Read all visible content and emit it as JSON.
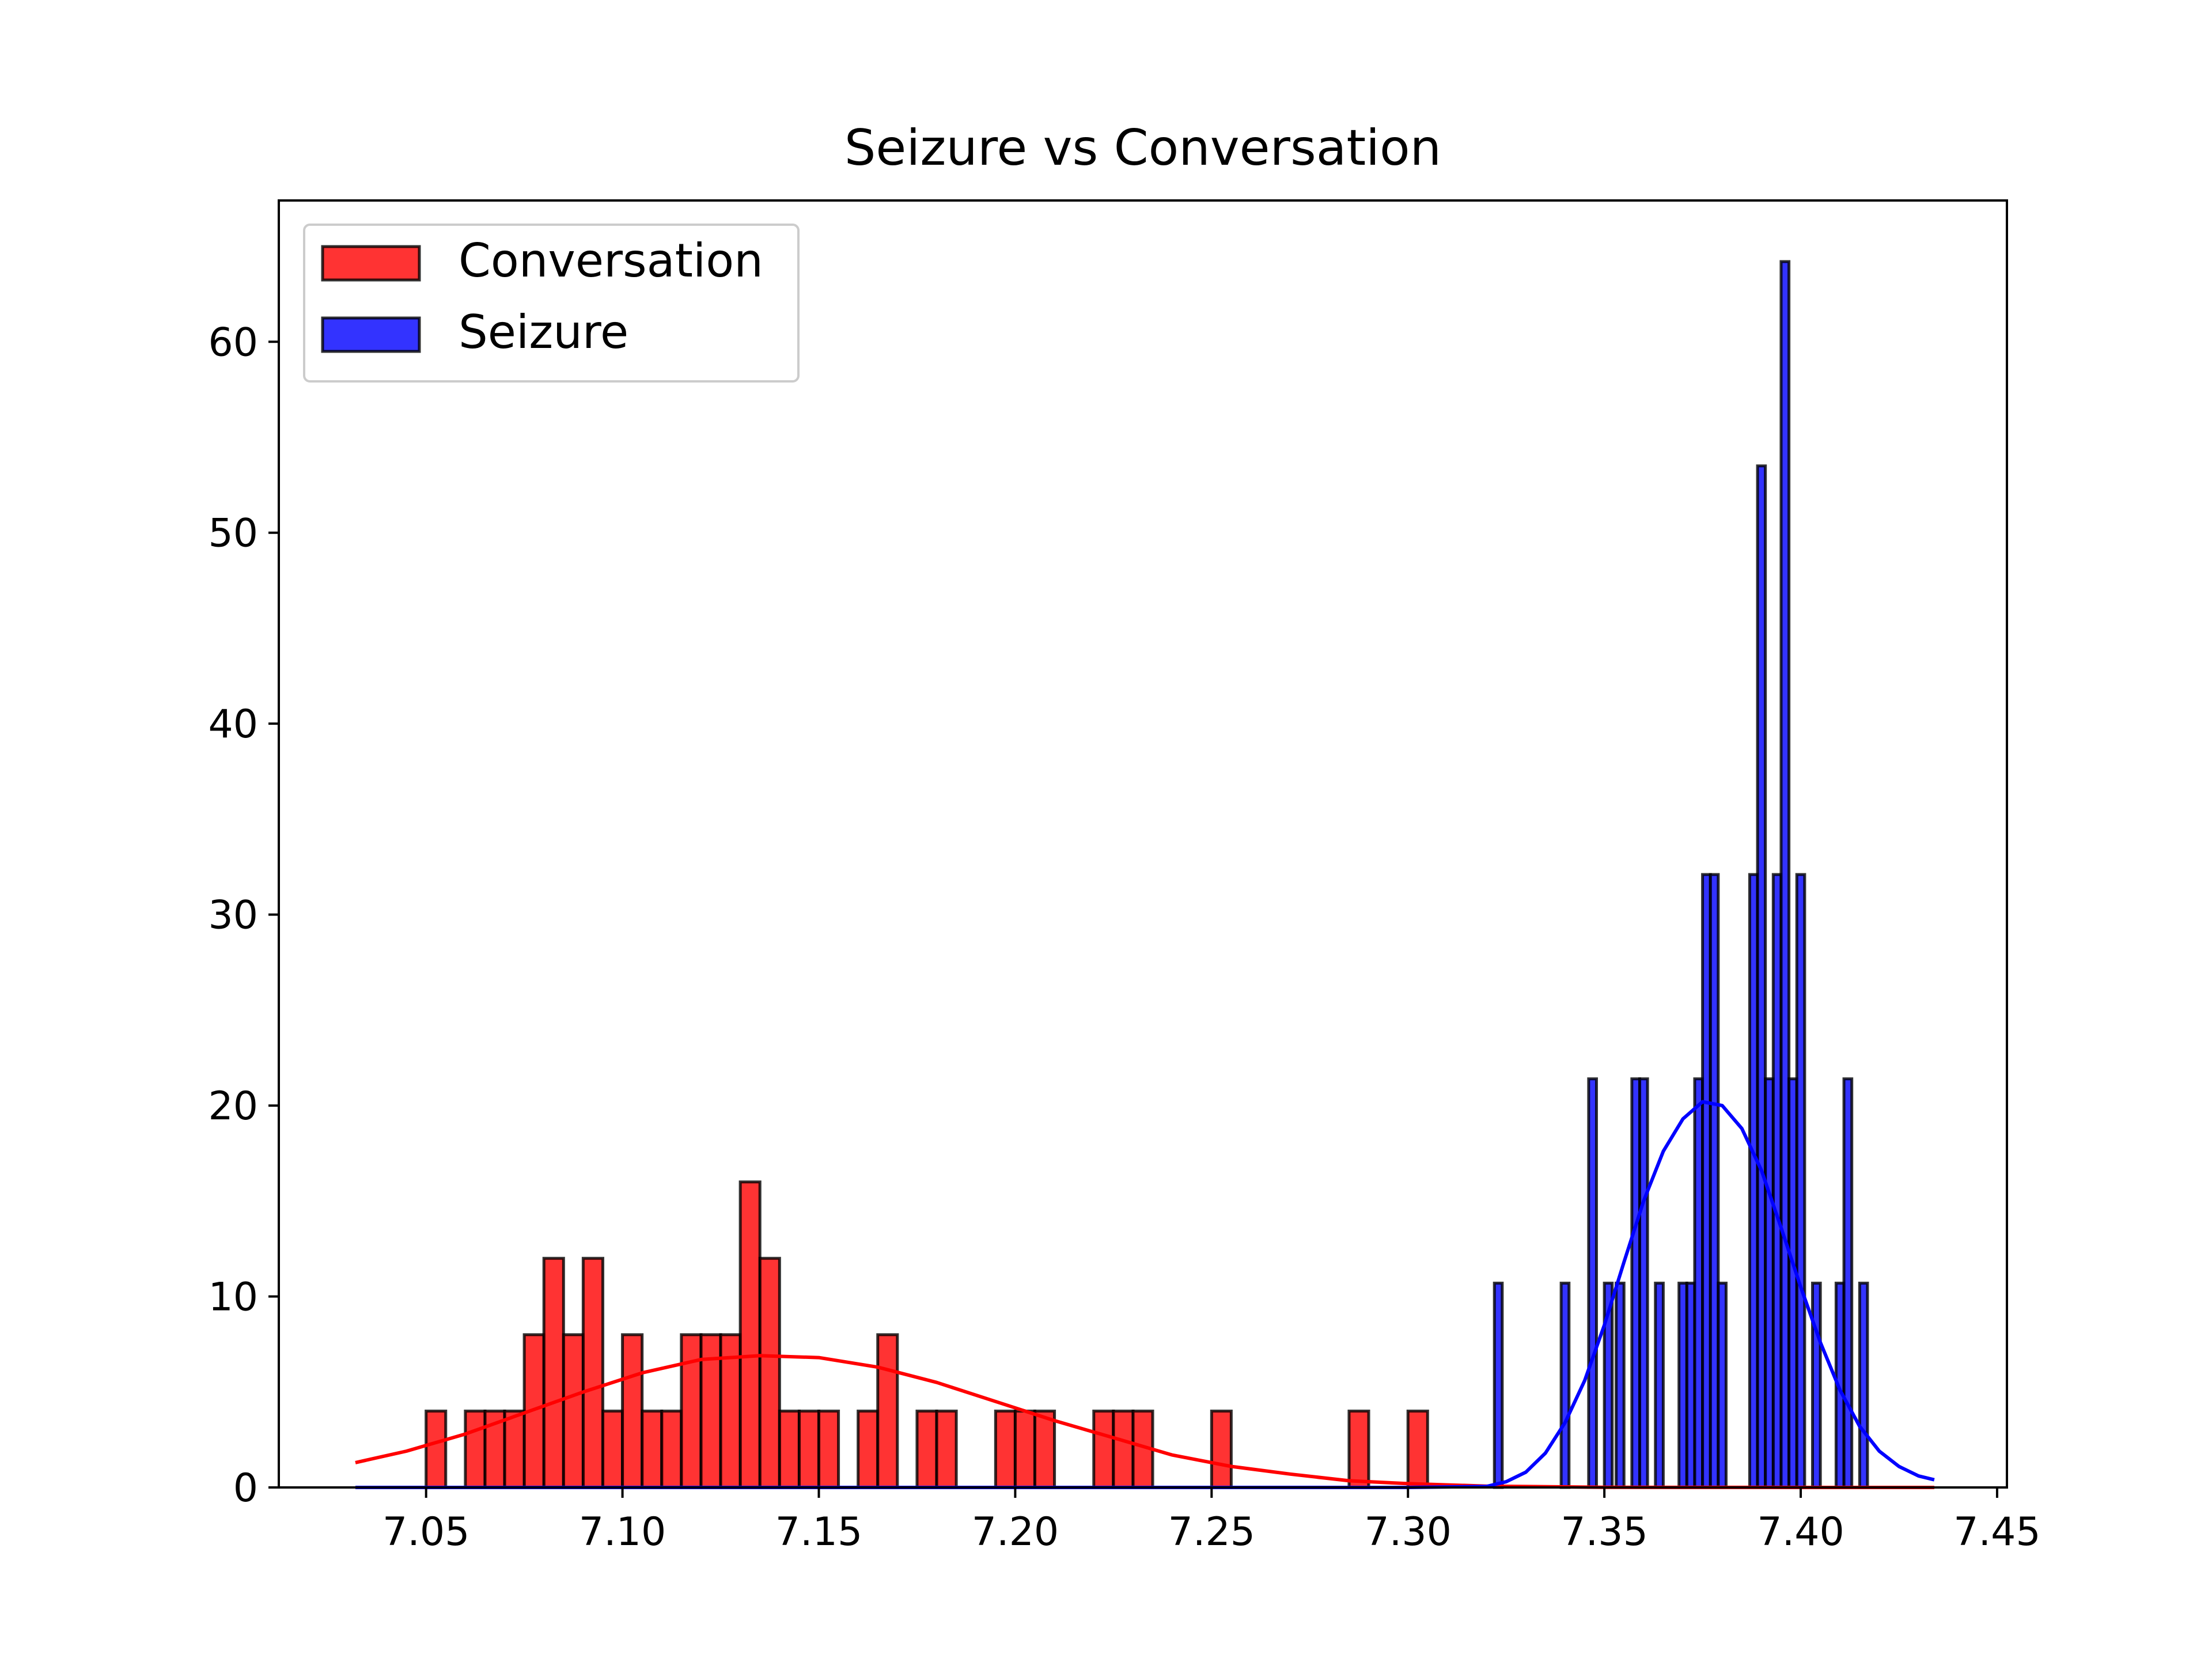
{
  "chart_data": {
    "type": "bar",
    "title": "Seizure vs Conversation",
    "xlabel": "",
    "ylabel": "",
    "xlim": [
      7.0125,
      7.4525
    ],
    "ylim": [
      0,
      67.4
    ],
    "xticks": [
      7.05,
      7.1,
      7.15,
      7.2,
      7.25,
      7.3,
      7.35,
      7.4,
      7.45
    ],
    "xtick_labels": [
      "7.05",
      "7.10",
      "7.15",
      "7.20",
      "7.25",
      "7.30",
      "7.35",
      "7.40",
      "7.45"
    ],
    "yticks": [
      0,
      10,
      20,
      30,
      40,
      50,
      60
    ],
    "ytick_labels": [
      "0",
      "10",
      "20",
      "30",
      "40",
      "50",
      "60"
    ],
    "grid": false,
    "legend_position": "upper-left",
    "series": [
      {
        "name": "Conversation",
        "color": "#ff0000",
        "bar_width": 0.005,
        "bins": [
          {
            "x": 7.0525,
            "value": 4
          },
          {
            "x": 7.0625,
            "value": 4
          },
          {
            "x": 7.0675,
            "value": 4
          },
          {
            "x": 7.0725,
            "value": 4
          },
          {
            "x": 7.0775,
            "value": 8
          },
          {
            "x": 7.0825,
            "value": 12
          },
          {
            "x": 7.0875,
            "value": 8
          },
          {
            "x": 7.0925,
            "value": 12
          },
          {
            "x": 7.0975,
            "value": 4
          },
          {
            "x": 7.1025,
            "value": 8
          },
          {
            "x": 7.1075,
            "value": 4
          },
          {
            "x": 7.1125,
            "value": 4
          },
          {
            "x": 7.1175,
            "value": 8
          },
          {
            "x": 7.1225,
            "value": 8
          },
          {
            "x": 7.1275,
            "value": 8
          },
          {
            "x": 7.1325,
            "value": 16
          },
          {
            "x": 7.1375,
            "value": 12
          },
          {
            "x": 7.1425,
            "value": 4
          },
          {
            "x": 7.1475,
            "value": 4
          },
          {
            "x": 7.1525,
            "value": 4
          },
          {
            "x": 7.1625,
            "value": 4
          },
          {
            "x": 7.1675,
            "value": 8
          },
          {
            "x": 7.1775,
            "value": 4
          },
          {
            "x": 7.1825,
            "value": 4
          },
          {
            "x": 7.1975,
            "value": 4
          },
          {
            "x": 7.2025,
            "value": 4
          },
          {
            "x": 7.2075,
            "value": 4
          },
          {
            "x": 7.2225,
            "value": 4
          },
          {
            "x": 7.2275,
            "value": 4
          },
          {
            "x": 7.2325,
            "value": 4
          },
          {
            "x": 7.2525,
            "value": 4
          },
          {
            "x": 7.2875,
            "value": 4
          },
          {
            "x": 7.3025,
            "value": 4
          }
        ],
        "fit_curve": {
          "x": [
            7.032,
            7.045,
            7.06,
            7.075,
            7.09,
            7.105,
            7.12,
            7.135,
            7.15,
            7.165,
            7.18,
            7.195,
            7.21,
            7.225,
            7.24,
            7.255,
            7.27,
            7.285,
            7.3,
            7.32,
            7.35,
            7.4,
            7.434
          ],
          "y": [
            1.3,
            1.9,
            2.8,
            3.9,
            5.0,
            6.0,
            6.7,
            6.9,
            6.8,
            6.3,
            5.5,
            4.5,
            3.5,
            2.6,
            1.7,
            1.1,
            0.7,
            0.35,
            0.2,
            0.07,
            0.01,
            0.0,
            0.0
          ]
        }
      },
      {
        "name": "Seizure",
        "color": "#0000ff",
        "bar_width": 0.002,
        "bins": [
          {
            "x": 7.323,
            "value": 10.7
          },
          {
            "x": 7.34,
            "value": 10.7
          },
          {
            "x": 7.347,
            "value": 21.4
          },
          {
            "x": 7.351,
            "value": 10.7
          },
          {
            "x": 7.354,
            "value": 10.7
          },
          {
            "x": 7.358,
            "value": 21.4
          },
          {
            "x": 7.36,
            "value": 21.4
          },
          {
            "x": 7.364,
            "value": 10.7
          },
          {
            "x": 7.37,
            "value": 10.7
          },
          {
            "x": 7.372,
            "value": 10.7
          },
          {
            "x": 7.374,
            "value": 21.4
          },
          {
            "x": 7.376,
            "value": 32.1
          },
          {
            "x": 7.378,
            "value": 32.1
          },
          {
            "x": 7.38,
            "value": 10.7
          },
          {
            "x": 7.388,
            "value": 32.1
          },
          {
            "x": 7.39,
            "value": 53.5
          },
          {
            "x": 7.392,
            "value": 21.4
          },
          {
            "x": 7.394,
            "value": 32.1
          },
          {
            "x": 7.396,
            "value": 64.2
          },
          {
            "x": 7.398,
            "value": 21.4
          },
          {
            "x": 7.4,
            "value": 32.1
          },
          {
            "x": 7.404,
            "value": 10.7
          },
          {
            "x": 7.41,
            "value": 10.7
          },
          {
            "x": 7.412,
            "value": 21.4
          },
          {
            "x": 7.416,
            "value": 10.7
          }
        ],
        "fit_curve": {
          "x": [
            7.032,
            7.1,
            7.2,
            7.3,
            7.32,
            7.325,
            7.33,
            7.335,
            7.34,
            7.345,
            7.35,
            7.355,
            7.36,
            7.365,
            7.37,
            7.375,
            7.38,
            7.385,
            7.39,
            7.395,
            7.4,
            7.405,
            7.41,
            7.415,
            7.42,
            7.425,
            7.43,
            7.434
          ],
          "y": [
            0.0,
            0.0,
            0.0,
            0.0,
            0.05,
            0.3,
            0.8,
            1.8,
            3.4,
            5.6,
            8.5,
            11.8,
            15.0,
            17.6,
            19.3,
            20.2,
            20.0,
            18.8,
            16.6,
            13.6,
            10.5,
            7.6,
            5.1,
            3.2,
            1.9,
            1.1,
            0.6,
            0.4
          ]
        }
      }
    ]
  }
}
